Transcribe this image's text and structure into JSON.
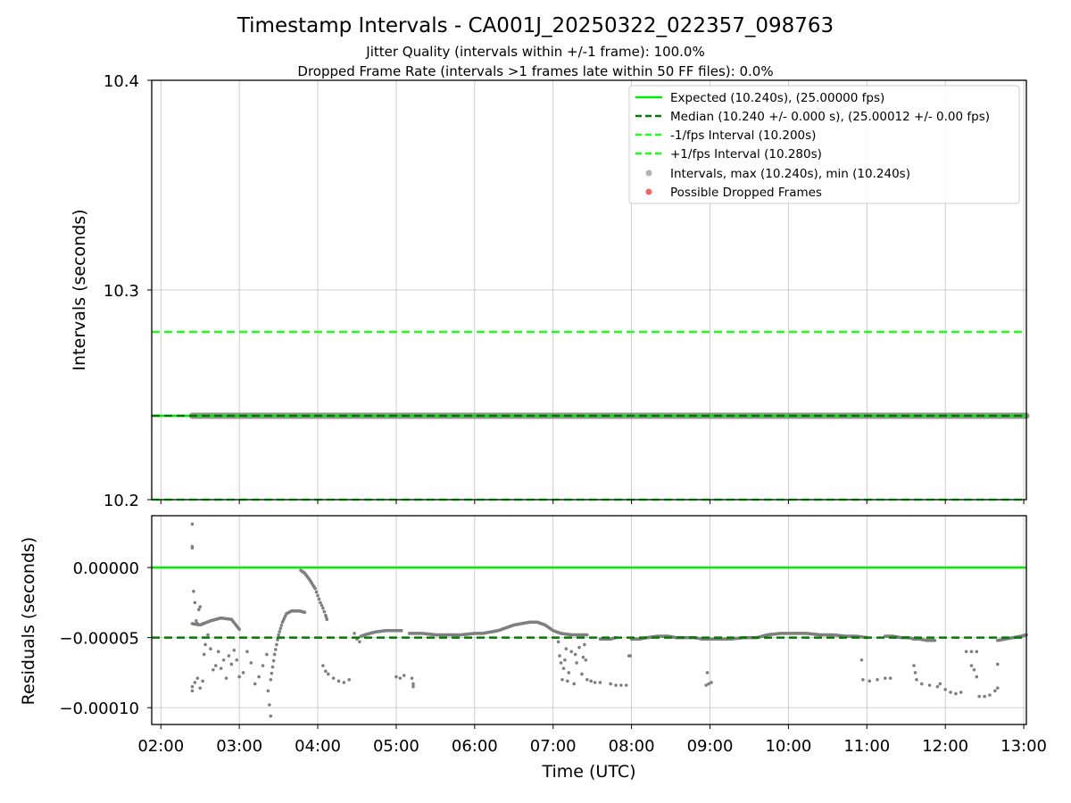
{
  "chart_data": {
    "title": "Timestamp Intervals - CA001J_20250322_022357_098763",
    "subtitle_lines": [
      "Jitter Quality (intervals within +/-1 frame): 100.0%",
      "Dropped Frame Rate (intervals >1 frames late within 50 FF files): 0.0%"
    ],
    "xlabel": "Time (UTC)",
    "x_ticks": [
      "02:00",
      "03:00",
      "04:00",
      "05:00",
      "06:00",
      "07:00",
      "08:00",
      "09:00",
      "10:00",
      "11:00",
      "12:00",
      "13:00"
    ],
    "xlim": [
      "01:53",
      "13:02"
    ],
    "grid": true,
    "panels": [
      {
        "type": "line",
        "ylabel": "Intervals (seconds)",
        "ylim": [
          10.2,
          10.4
        ],
        "y_ticks": [
          "10.4",
          "10.3",
          "10.2"
        ],
        "legend_position": "top-right",
        "legend": [
          "Expected (10.240s), (25.00000 fps)",
          "Median (10.240 +/- 0.000 s), (25.00012 +/- 0.00 fps)",
          "-1/fps Interval (10.200s)",
          "+1/fps Interval (10.280s)",
          "Intervals, max (10.240s), min (10.240s)",
          "Possible Dropped Frames"
        ],
        "lines": [
          {
            "name": "Expected",
            "y": 10.24,
            "color": "#00ee00",
            "style": "solid"
          },
          {
            "name": "Median",
            "y": 10.24,
            "color": "#007a00",
            "style": "dashed"
          },
          {
            "name": "-1/fps Interval",
            "y": 10.2,
            "color": "#1fff1f",
            "style": "dashed"
          },
          {
            "name": "+1/fps Interval",
            "y": 10.28,
            "color": "#1fff1f",
            "style": "dashed"
          }
        ],
        "intervals": {
          "x_start": "02:24",
          "x_end": "13:02",
          "y": 10.24,
          "color": "#808080"
        },
        "dropped_frames": []
      },
      {
        "type": "scatter",
        "ylabel": "Residuals (seconds)",
        "ylim": [
          -0.000112,
          3.7e-05
        ],
        "y_ticks": [
          {
            "label": "0.00000",
            "value": 0
          },
          {
            "label": "−0.00005",
            "value": -5e-05
          },
          {
            "label": "−0.00010",
            "value": -0.0001
          }
        ],
        "expected_line": 0,
        "median_line": -5e-05,
        "point_color": "#7f7f7f",
        "points": [
          [
            "02:24",
            3.1e-05
          ],
          [
            "02:24",
            1.4e-05
          ],
          [
            "02:24",
            1.5e-05
          ],
          [
            "02:24",
            -8.8e-05
          ],
          [
            "02:24",
            -8.5e-05
          ],
          [
            "02:25",
            -1.7e-05
          ],
          [
            "02:26",
            -2.5e-05
          ],
          [
            "02:27",
            -3.8e-05
          ],
          [
            "02:28",
            -4e-05
          ],
          [
            "02:29",
            -3e-05
          ],
          [
            "02:30",
            -2.8e-05
          ],
          [
            "02:26",
            -8.2e-05
          ],
          [
            "02:28",
            -7.9e-05
          ],
          [
            "02:30",
            -8.6e-05
          ],
          [
            "02:32",
            -8.1e-05
          ],
          [
            "02:32",
            -4e-05
          ],
          [
            "02:33",
            -6.2e-05
          ],
          [
            "02:34",
            -5.5e-05
          ],
          [
            "02:36",
            -4.8e-05
          ],
          [
            "02:38",
            -5.8e-05
          ],
          [
            "02:40",
            -7.3e-05
          ],
          [
            "02:42",
            -7e-05
          ],
          [
            "02:44",
            -6e-05
          ],
          [
            "02:46",
            -7.2e-05
          ],
          [
            "02:48",
            -6.6e-05
          ],
          [
            "02:50",
            -7.9e-05
          ],
          [
            "02:52",
            -6.3e-05
          ],
          [
            "02:54",
            -6.9e-05
          ],
          [
            "02:56",
            -5.9e-05
          ],
          [
            "02:58",
            -6.6e-05
          ],
          [
            "03:00",
            -7.8e-05
          ],
          [
            "03:03",
            -7.5e-05
          ],
          [
            "03:06",
            -6e-05
          ],
          [
            "03:09",
            -6.8e-05
          ],
          [
            "03:12",
            -8.3e-05
          ],
          [
            "03:15",
            -7.8e-05
          ],
          [
            "03:18",
            -7e-05
          ],
          [
            "03:21",
            -6.2e-05
          ],
          [
            "03:23",
            -9.8e-05
          ],
          [
            "03:22",
            -8.8e-05
          ],
          [
            "03:24",
            -0.000106
          ],
          [
            "04:04",
            -7e-05
          ],
          [
            "04:06",
            -7.4e-05
          ],
          [
            "04:08",
            -7.6e-05
          ],
          [
            "04:12",
            -7.9e-05
          ],
          [
            "04:16",
            -8.1e-05
          ],
          [
            "04:20",
            -8.2e-05
          ],
          [
            "04:24",
            -8e-05
          ],
          [
            "04:28",
            -4.7e-05
          ],
          [
            "04:30",
            -5.1e-05
          ],
          [
            "04:32",
            -5.3e-05
          ],
          [
            "05:00",
            -7.8e-05
          ],
          [
            "05:03",
            -7.9e-05
          ],
          [
            "05:06",
            -7.7e-05
          ],
          [
            "05:12",
            -7.9e-05
          ],
          [
            "05:13",
            -8.3e-05
          ],
          [
            "05:13",
            -8.5e-05
          ],
          [
            "07:04",
            -5.3e-05
          ],
          [
            "07:05",
            -6.3e-05
          ],
          [
            "07:06",
            -6.8e-05
          ],
          [
            "07:07",
            -8e-05
          ],
          [
            "07:08",
            -7.2e-05
          ],
          [
            "07:09",
            -6.6e-05
          ],
          [
            "07:10",
            -5.8e-05
          ],
          [
            "07:11",
            -8.1e-05
          ],
          [
            "07:12",
            -7.5e-05
          ],
          [
            "07:14",
            -6e-05
          ],
          [
            "07:16",
            -8.3e-05
          ],
          [
            "07:17",
            -6.2e-05
          ],
          [
            "07:18",
            -6.8e-05
          ],
          [
            "07:20",
            -5.7e-05
          ],
          [
            "07:22",
            -7.6e-05
          ],
          [
            "07:23",
            -6.4e-05
          ],
          [
            "07:24",
            -5.5e-05
          ],
          [
            "07:25",
            -6.6e-05
          ],
          [
            "07:26",
            -8e-05
          ],
          [
            "07:29",
            -8.1e-05
          ],
          [
            "07:32",
            -8.2e-05
          ],
          [
            "07:36",
            -8.2e-05
          ],
          [
            "07:44",
            -8.3e-05
          ],
          [
            "07:48",
            -8.4e-05
          ],
          [
            "07:52",
            -8.4e-05
          ],
          [
            "07:56",
            -8.4e-05
          ],
          [
            "07:58",
            -6.3e-05
          ],
          [
            "07:59",
            -6.3e-05
          ],
          [
            "08:57",
            -8.4e-05
          ],
          [
            "08:59",
            -8.3e-05
          ],
          [
            "09:01",
            -8.2e-05
          ],
          [
            "08:58",
            -7.5e-05
          ],
          [
            "10:56",
            -6.6e-05
          ],
          [
            "10:57",
            -8e-05
          ],
          [
            "11:02",
            -8.1e-05
          ],
          [
            "11:08",
            -8e-05
          ],
          [
            "11:14",
            -7.9e-05
          ],
          [
            "11:18",
            -7.9e-05
          ],
          [
            "11:36",
            -7e-05
          ],
          [
            "11:37",
            -7.5e-05
          ],
          [
            "11:38",
            -8e-05
          ],
          [
            "11:42",
            -8.3e-05
          ],
          [
            "11:48",
            -8.4e-05
          ],
          [
            "11:54",
            -8.5e-05
          ],
          [
            "11:56",
            -8.3e-05
          ],
          [
            "12:00",
            -8.7e-05
          ],
          [
            "12:04",
            -8.9e-05
          ],
          [
            "12:08",
            -9e-05
          ],
          [
            "12:12",
            -8.9e-05
          ],
          [
            "12:16",
            -6e-05
          ],
          [
            "12:20",
            -6e-05
          ],
          [
            "12:24",
            -6e-05
          ],
          [
            "12:20",
            -7e-05
          ],
          [
            "12:22",
            -7.3e-05
          ],
          [
            "12:24",
            -7.8e-05
          ],
          [
            "12:26",
            -9.2e-05
          ],
          [
            "12:30",
            -9.2e-05
          ],
          [
            "12:34",
            -9.1e-05
          ],
          [
            "12:38",
            -8.8e-05
          ],
          [
            "12:40",
            -8.6e-05
          ],
          [
            "12:40",
            -6.9e-05
          ]
        ],
        "point_runs": [
          [
            [
              "02:24",
              -4e-05
            ],
            [
              "02:30",
              -4.1e-05
            ],
            [
              "02:38",
              -3.8e-05
            ],
            [
              "02:46",
              -3.6e-05
            ],
            [
              "02:54",
              -3.7e-05
            ],
            [
              "03:00",
              -4.4e-05
            ]
          ],
          [
            [
              "03:24",
              -8e-05
            ],
            [
              "03:27",
              -6.2e-05
            ],
            [
              "03:30",
              -4.8e-05
            ],
            [
              "03:33",
              -3.9e-05
            ],
            [
              "03:36",
              -3.3e-05
            ],
            [
              "03:40",
              -3.1e-05
            ],
            [
              "03:46",
              -3.1e-05
            ],
            [
              "03:50",
              -3.2e-05
            ]
          ],
          [
            [
              "03:47",
              -2e-06
            ],
            [
              "03:50",
              -4e-06
            ],
            [
              "03:54",
              -9e-06
            ],
            [
              "03:58",
              -1.5e-05
            ],
            [
              "04:00",
              -2e-05
            ],
            [
              "04:02",
              -2.5e-05
            ],
            [
              "04:04",
              -2.9e-05
            ],
            [
              "04:06",
              -3.4e-05
            ],
            [
              "04:07",
              -3.7e-05
            ]
          ],
          [
            [
              "04:33",
              -4.9e-05
            ],
            [
              "04:36",
              -4.8e-05
            ],
            [
              "04:40",
              -4.7e-05
            ],
            [
              "04:44",
              -4.6e-05
            ],
            [
              "04:52",
              -4.5e-05
            ],
            [
              "05:00",
              -4.5e-05
            ],
            [
              "05:04",
              -4.5e-05
            ]
          ],
          [
            [
              "05:10",
              -4.7e-05
            ],
            [
              "05:20",
              -4.7e-05
            ],
            [
              "05:30",
              -4.8e-05
            ],
            [
              "05:40",
              -4.8e-05
            ],
            [
              "05:50",
              -4.8e-05
            ],
            [
              "06:00",
              -4.7e-05
            ],
            [
              "06:06",
              -4.7e-05
            ],
            [
              "06:12",
              -4.6e-05
            ],
            [
              "06:18",
              -4.5e-05
            ],
            [
              "06:24",
              -4.3e-05
            ],
            [
              "06:30",
              -4.1e-05
            ],
            [
              "06:36",
              -4e-05
            ],
            [
              "06:42",
              -3.9e-05
            ],
            [
              "06:48",
              -3.9e-05
            ],
            [
              "06:54",
              -4.1e-05
            ],
            [
              "07:00",
              -4.5e-05
            ],
            [
              "07:06",
              -4.7e-05
            ],
            [
              "07:14",
              -4.8e-05
            ],
            [
              "07:26",
              -4.8e-05
            ]
          ],
          [
            [
              "07:36",
              -5.1e-05
            ],
            [
              "07:44",
              -5.1e-05
            ],
            [
              "07:48",
              -5e-05
            ]
          ],
          [
            [
              "08:00",
              -5.1e-05
            ],
            [
              "08:06",
              -5.1e-05
            ],
            [
              "08:12",
              -5e-05
            ],
            [
              "08:20",
              -4.9e-05
            ],
            [
              "08:28",
              -4.9e-05
            ],
            [
              "08:34",
              -5e-05
            ],
            [
              "08:42",
              -5e-05
            ],
            [
              "08:48",
              -5e-05
            ],
            [
              "08:54",
              -5.1e-05
            ],
            [
              "09:04",
              -5.1e-05
            ],
            [
              "09:16",
              -5.1e-05
            ],
            [
              "09:26",
              -5e-05
            ],
            [
              "09:36",
              -5e-05
            ],
            [
              "09:44",
              -4.8e-05
            ],
            [
              "09:54",
              -4.7e-05
            ],
            [
              "10:04",
              -4.7e-05
            ],
            [
              "10:14",
              -4.7e-05
            ],
            [
              "10:24",
              -4.8e-05
            ],
            [
              "10:34",
              -4.8e-05
            ],
            [
              "10:44",
              -4.9e-05
            ],
            [
              "10:52",
              -4.9e-05
            ],
            [
              "11:00",
              -5e-05
            ]
          ],
          [
            [
              "11:14",
              -4.9e-05
            ],
            [
              "11:20",
              -4.9e-05
            ],
            [
              "11:26",
              -5e-05
            ],
            [
              "11:32",
              -5e-05
            ],
            [
              "11:36",
              -5.1e-05
            ],
            [
              "11:40",
              -5.1e-05
            ],
            [
              "11:46",
              -5.2e-05
            ],
            [
              "11:52",
              -5.2e-05
            ]
          ],
          [
            [
              "12:40",
              -5.2e-05
            ],
            [
              "12:46",
              -5.1e-05
            ],
            [
              "12:52",
              -5e-05
            ],
            [
              "12:58",
              -4.9e-05
            ],
            [
              "13:02",
              -4.8e-05
            ]
          ]
        ]
      }
    ]
  }
}
